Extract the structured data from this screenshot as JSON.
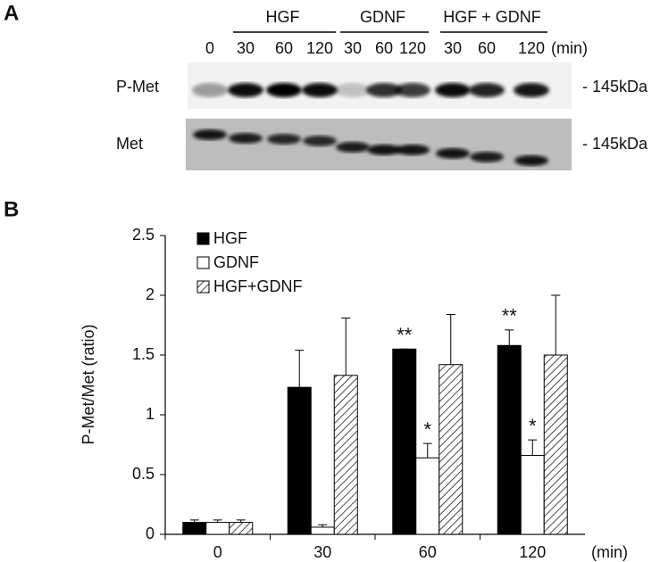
{
  "panel_a": {
    "label": "A",
    "zero_time": "0",
    "unit": "(min)",
    "groups": [
      {
        "name": "HGF",
        "times": [
          "30",
          "60",
          "120"
        ]
      },
      {
        "name": "GDNF",
        "times": [
          "30",
          "60",
          "120"
        ]
      },
      {
        "name": "HGF + GDNF",
        "times": [
          "30",
          "60",
          "120"
        ]
      }
    ],
    "rows": [
      {
        "name": "P-Met",
        "marker": "- 145kDa"
      },
      {
        "name": "Met",
        "marker": "- 145kDa"
      }
    ]
  },
  "chart_data": {
    "type": "bar",
    "panel_label": "B",
    "y_label": "P-Met/Met (ratio)",
    "x_unit": "(min)",
    "categories": [
      "0",
      "30",
      "60",
      "120"
    ],
    "series": [
      {
        "name": "HGF",
        "color": "#000000",
        "fill": "solid",
        "values": [
          0.1,
          1.23,
          1.55,
          1.58
        ],
        "errors": [
          0.02,
          0.31,
          0,
          0.13
        ],
        "significance": [
          null,
          null,
          "**",
          "**"
        ]
      },
      {
        "name": "GDNF",
        "color": "#ffffff",
        "fill": "solid",
        "values": [
          0.1,
          0.06,
          0.64,
          0.66
        ],
        "errors": [
          0.02,
          0.02,
          0.12,
          0.13
        ],
        "significance": [
          null,
          null,
          "*",
          "*"
        ]
      },
      {
        "name": "HGF+GDNF",
        "color": "#ffffff",
        "fill": "hatch",
        "values": [
          0.1,
          1.33,
          1.42,
          1.5
        ],
        "errors": [
          0.02,
          0.48,
          0.42,
          0.5
        ],
        "significance": [
          null,
          null,
          null,
          null
        ]
      }
    ],
    "ylim": [
      0,
      2.5
    ],
    "yticks": [
      0,
      0.5,
      1,
      1.5,
      2,
      2.5
    ],
    "legend": "top-left"
  }
}
